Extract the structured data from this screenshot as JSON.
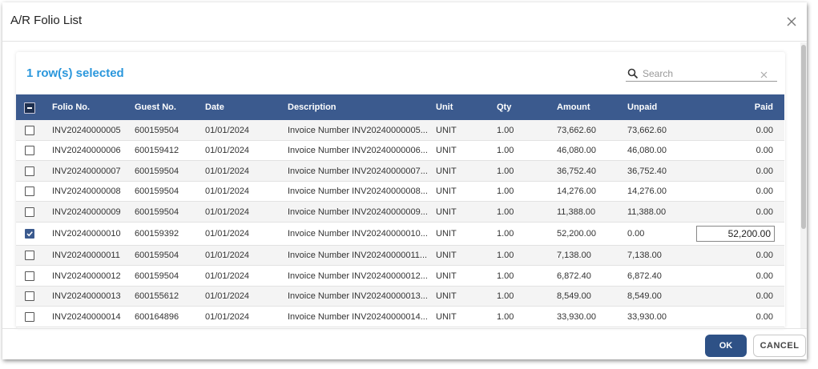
{
  "header": {
    "title": "A/R Folio List"
  },
  "selection_text": "1 row(s) selected",
  "search": {
    "placeholder": "Search"
  },
  "table": {
    "columns": [
      "Folio No.",
      "Guest No.",
      "Date",
      "Description",
      "Unit",
      "Qty",
      "Amount",
      "Unpaid",
      "Paid"
    ],
    "rows": [
      {
        "selected": false,
        "cells": [
          "INV20240000005",
          "600159504",
          "01/01/2024",
          "Invoice Number INV20240000005...",
          "UNIT",
          "1.00",
          "73,662.60",
          "73,662.60",
          "0.00"
        ]
      },
      {
        "selected": false,
        "cells": [
          "INV20240000006",
          "600159412",
          "01/01/2024",
          "Invoice Number INV20240000006...",
          "UNIT",
          "1.00",
          "46,080.00",
          "46,080.00",
          "0.00"
        ]
      },
      {
        "selected": false,
        "cells": [
          "INV20240000007",
          "600159504",
          "01/01/2024",
          "Invoice Number INV20240000007...",
          "UNIT",
          "1.00",
          "36,752.40",
          "36,752.40",
          "0.00"
        ]
      },
      {
        "selected": false,
        "cells": [
          "INV20240000008",
          "600159504",
          "01/01/2024",
          "Invoice Number INV20240000008...",
          "UNIT",
          "1.00",
          "14,276.00",
          "14,276.00",
          "0.00"
        ]
      },
      {
        "selected": false,
        "cells": [
          "INV20240000009",
          "600159504",
          "01/01/2024",
          "Invoice Number INV20240000009...",
          "UNIT",
          "1.00",
          "11,388.00",
          "11,388.00",
          "0.00"
        ]
      },
      {
        "selected": true,
        "cells": [
          "INV20240000010",
          "600159392",
          "01/01/2024",
          "Invoice Number INV20240000010...",
          "UNIT",
          "1.00",
          "52,200.00",
          "0.00",
          "52,200.00"
        ]
      },
      {
        "selected": false,
        "cells": [
          "INV20240000011",
          "600159504",
          "01/01/2024",
          "Invoice Number INV20240000011...",
          "UNIT",
          "1.00",
          "7,138.00",
          "7,138.00",
          "0.00"
        ]
      },
      {
        "selected": false,
        "cells": [
          "INV20240000012",
          "600159504",
          "01/01/2024",
          "Invoice Number INV20240000012...",
          "UNIT",
          "1.00",
          "6,872.40",
          "6,872.40",
          "0.00"
        ]
      },
      {
        "selected": false,
        "cells": [
          "INV20240000013",
          "600155612",
          "01/01/2024",
          "Invoice Number INV20240000013...",
          "UNIT",
          "1.00",
          "8,549.00",
          "8,549.00",
          "0.00"
        ]
      },
      {
        "selected": false,
        "cells": [
          "INV20240000014",
          "600164896",
          "01/01/2024",
          "Invoice Number INV20240000014...",
          "UNIT",
          "1.00",
          "33,930.00",
          "33,930.00",
          "0.00"
        ]
      }
    ]
  },
  "buttons": {
    "ok": "OK",
    "cancel": "CANCEL"
  }
}
